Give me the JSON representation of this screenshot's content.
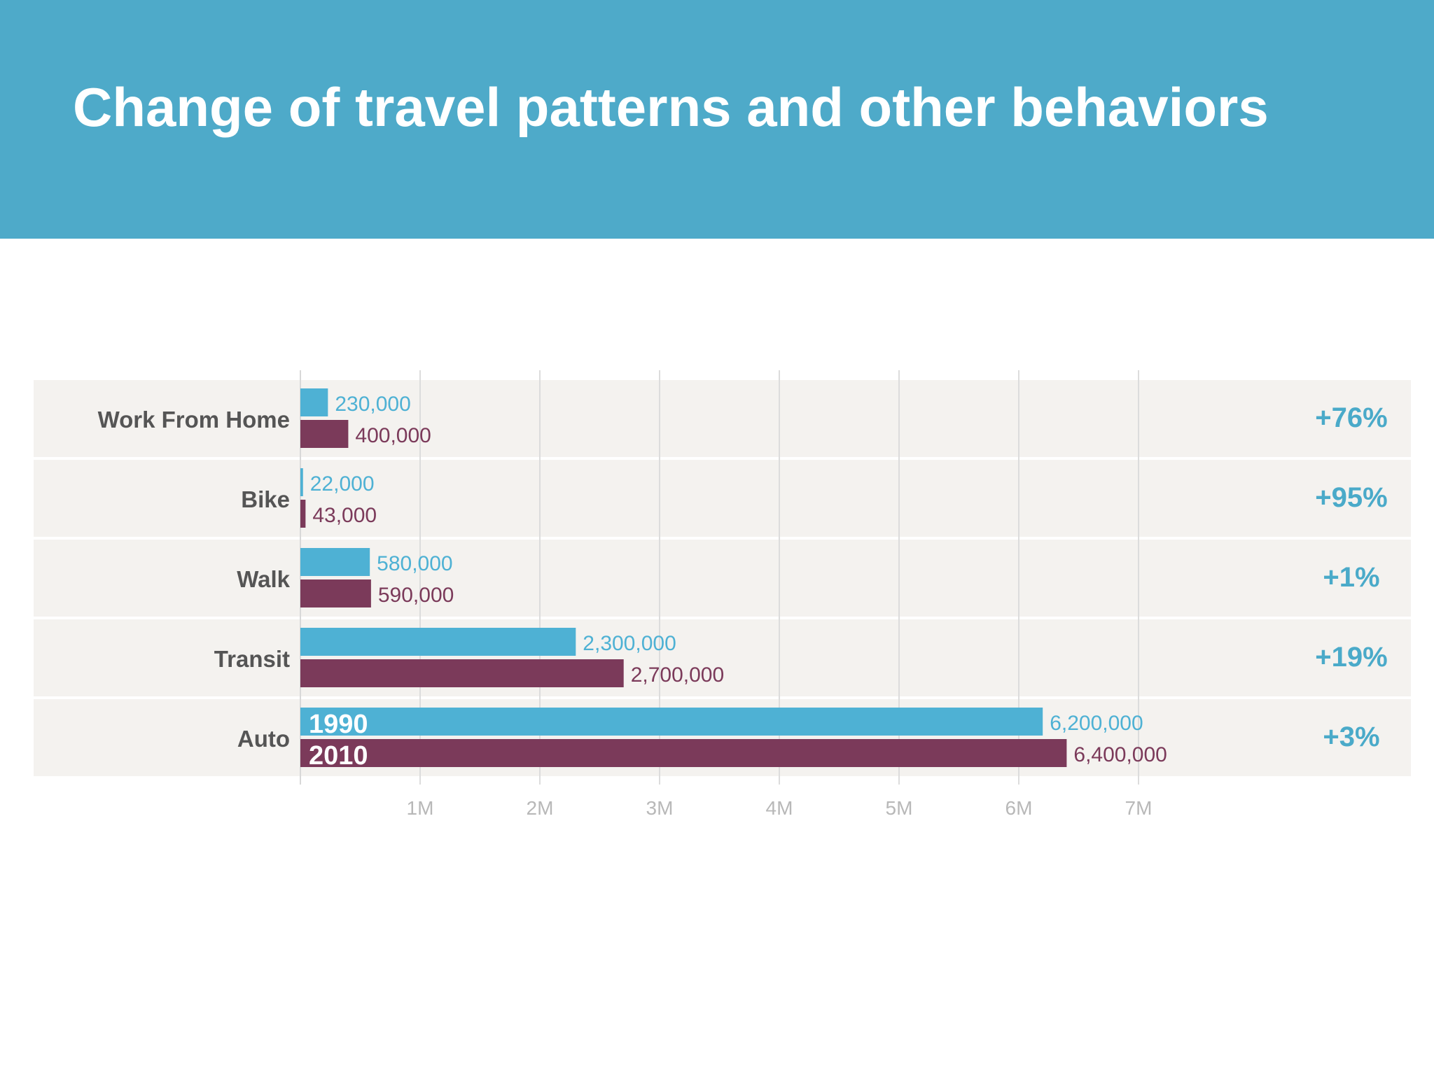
{
  "header": {
    "title": "Change of travel patterns and other behaviors"
  },
  "colors": {
    "header_bg": "#4eaac9",
    "series_1990": "#4eb1d4",
    "series_2010": "#7b3a5a",
    "row_bg": "#f4f2ef",
    "pct_text": "#4aaac9",
    "category_text": "#555555",
    "tick_text": "#b8b8b8"
  },
  "chart_data": {
    "type": "bar",
    "orientation": "horizontal",
    "categories": [
      "Work From Home",
      "Bike",
      "Walk",
      "Transit",
      "Auto"
    ],
    "series": [
      {
        "name": "1990",
        "values": [
          230000,
          22000,
          580000,
          2300000,
          6200000
        ],
        "value_labels": [
          "230,000",
          "22,000",
          "580,000",
          "2,300,000",
          "6,200,000"
        ]
      },
      {
        "name": "2010",
        "values": [
          400000,
          43000,
          590000,
          2700000,
          6400000
        ],
        "value_labels": [
          "400,000",
          "43,000",
          "590,000",
          "2,700,000",
          "6,400,000"
        ]
      }
    ],
    "change_labels": [
      "+76%",
      "+95%",
      "+1%",
      "+19%",
      "+3%"
    ],
    "xlim": [
      0,
      7000000
    ],
    "xticks": [
      1000000,
      2000000,
      3000000,
      4000000,
      5000000,
      6000000,
      7000000
    ],
    "xtick_labels": [
      "1M",
      "2M",
      "3M",
      "4M",
      "5M",
      "6M",
      "7M"
    ],
    "grid": true,
    "legend": "inline on Auto bars"
  }
}
